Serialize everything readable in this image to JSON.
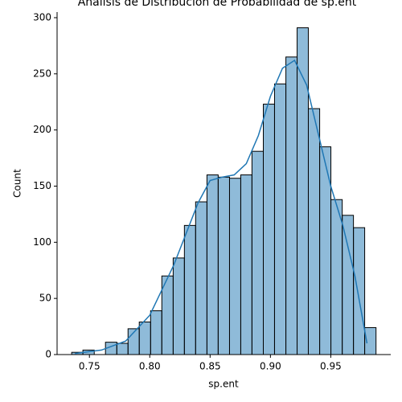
{
  "chart_data": {
    "type": "histogram",
    "title": "Análisis de Distribución de Probabilidad de sp.ent",
    "x_label": "sp.ent",
    "y_label": "Count",
    "bins": [
      0.7353,
      0.7446,
      0.754,
      0.7633,
      0.7727,
      0.782,
      0.7913,
      0.8007,
      0.81,
      0.8194,
      0.8287,
      0.838,
      0.8474,
      0.8567,
      0.8661,
      0.8754,
      0.8847,
      0.8941,
      0.9034,
      0.9128,
      0.9221,
      0.9314,
      0.9408,
      0.9501,
      0.9595,
      0.9688,
      0.9781,
      0.9875
    ],
    "values": [
      2,
      4,
      0,
      11,
      10,
      23,
      29,
      39,
      70,
      86,
      115,
      136,
      160,
      158,
      157,
      160,
      181,
      223,
      241,
      265,
      291,
      219,
      185,
      138,
      124,
      113,
      24
    ],
    "color": "#1f77b4",
    "kde": {
      "x": [
        0.738,
        0.76,
        0.78,
        0.8,
        0.82,
        0.84,
        0.85,
        0.86,
        0.87,
        0.88,
        0.89,
        0.9,
        0.91,
        0.92,
        0.93,
        0.94,
        0.95,
        0.96,
        0.97,
        0.98
      ],
      "values": [
        1,
        4,
        12,
        35,
        80,
        135,
        155,
        158,
        160,
        170,
        195,
        230,
        255,
        262,
        240,
        195,
        150,
        115,
        70,
        10
      ]
    },
    "xlim": [
      0.7232,
      0.9997
    ],
    "ylim": [
      0,
      305
    ],
    "xticks": [
      0.75,
      {
        "value": 0.8,
        "label": "0.80"
      },
      0.85,
      {
        "value": 0.9,
        "label": "0.90"
      },
      0.95
    ],
    "yticks": [
      0,
      50,
      100,
      150,
      200,
      250,
      300
    ]
  }
}
